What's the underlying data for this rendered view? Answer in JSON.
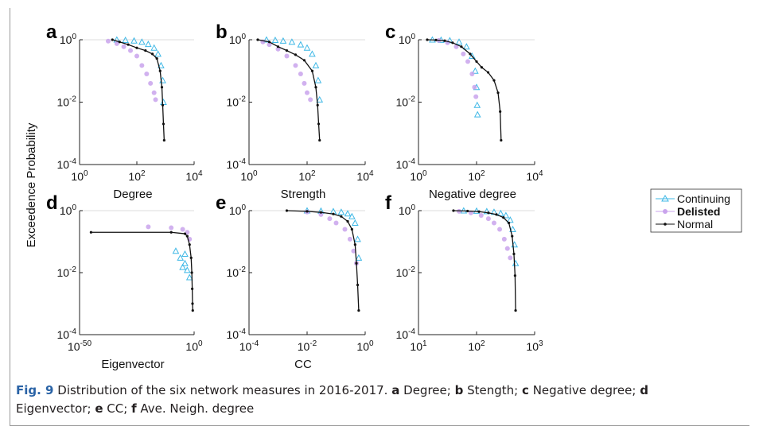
{
  "figure": {
    "ylabel": "Exceedence Probability",
    "legend": {
      "entries": [
        "Continuing",
        "Delisted",
        "Normal"
      ],
      "placement": "right, between rows"
    },
    "colors": {
      "Continuing": "#3fb8e6",
      "Delisted": "#c9a3ec",
      "Normal": "#111111"
    }
  },
  "caption": {
    "fig_label": "Fig. 9",
    "text": "Distribution of the six network measures in 2016-2017.",
    "items": [
      {
        "letter": "a",
        "text": "Degree;"
      },
      {
        "letter": "b",
        "text": "Stength;"
      },
      {
        "letter": "c",
        "text": "Negative degree;"
      },
      {
        "letter": "d",
        "text": "Eigenvector;"
      },
      {
        "letter": "e",
        "text": "CC;"
      },
      {
        "letter": "f",
        "text": "Ave. Neigh. degree"
      }
    ]
  },
  "chart_data": [
    {
      "panel": "a",
      "type": "scatter",
      "xlabel": "Degree",
      "ylabel": "",
      "xscale": "log",
      "yscale": "log",
      "xlim": [
        1,
        10000
      ],
      "ylim": [
        0.0001,
        1
      ],
      "xticks": [
        "10^0",
        "10^2",
        "10^4"
      ],
      "yticks": [
        "10^0",
        "10^-2",
        "10^-4"
      ],
      "series": [
        {
          "name": "Continuing",
          "marker": "triangle",
          "x": [
            20,
            40,
            80,
            150,
            250,
            400,
            550,
            700,
            800,
            850
          ],
          "y": [
            1.0,
            0.97,
            0.93,
            0.85,
            0.72,
            0.55,
            0.35,
            0.15,
            0.05,
            0.01
          ]
        },
        {
          "name": "Delisted",
          "marker": "circle",
          "x": [
            10,
            20,
            35,
            60,
            100,
            150,
            220,
            300,
            400,
            450
          ],
          "y": [
            0.9,
            0.75,
            0.6,
            0.45,
            0.3,
            0.15,
            0.08,
            0.04,
            0.02,
            0.012
          ]
        },
        {
          "name": "Normal",
          "marker": "dot-line",
          "x": [
            14,
            25,
            50,
            100,
            200,
            350,
            500,
            650,
            750,
            800,
            850,
            900
          ],
          "y": [
            1.0,
            0.85,
            0.7,
            0.55,
            0.45,
            0.35,
            0.25,
            0.1,
            0.03,
            0.008,
            0.002,
            0.0006
          ]
        }
      ]
    },
    {
      "panel": "b",
      "type": "scatter",
      "xlabel": "Strength",
      "ylabel": "",
      "xscale": "log",
      "yscale": "log",
      "xlim": [
        1,
        10000
      ],
      "ylim": [
        0.0001,
        1
      ],
      "xticks": [
        "10^0",
        "10^2",
        "10^4"
      ],
      "yticks": [
        "10^0",
        "10^-2",
        "10^-4"
      ],
      "series": [
        {
          "name": "Continuing",
          "marker": "triangle",
          "x": [
            4,
            8,
            15,
            30,
            60,
            100,
            150,
            200,
            240,
            270
          ],
          "y": [
            1.0,
            0.97,
            0.92,
            0.85,
            0.7,
            0.55,
            0.35,
            0.15,
            0.05,
            0.012
          ]
        },
        {
          "name": "Delisted",
          "marker": "circle",
          "x": [
            3,
            5,
            10,
            20,
            40,
            60,
            80,
            100,
            130
          ],
          "y": [
            0.85,
            0.7,
            0.5,
            0.3,
            0.15,
            0.08,
            0.04,
            0.02,
            0.012
          ]
        },
        {
          "name": "Normal",
          "marker": "dot-line",
          "x": [
            2,
            5,
            10,
            20,
            40,
            80,
            150,
            200,
            230,
            250,
            270
          ],
          "y": [
            1.0,
            0.85,
            0.6,
            0.45,
            0.33,
            0.22,
            0.1,
            0.03,
            0.008,
            0.002,
            0.0006
          ]
        }
      ]
    },
    {
      "panel": "c",
      "type": "scatter",
      "xlabel": "Negative degree",
      "ylabel": "",
      "xscale": "log",
      "yscale": "log",
      "xlim": [
        1,
        10000
      ],
      "ylim": [
        0.0001,
        1
      ],
      "xticks": [
        "10^0",
        "10^2",
        "10^4"
      ],
      "yticks": [
        "10^0",
        "10^-2",
        "10^-4"
      ],
      "series": [
        {
          "name": "Continuing",
          "marker": "triangle",
          "x": [
            3,
            6,
            12,
            25,
            45,
            70,
            90,
            100,
            105,
            108
          ],
          "y": [
            1.0,
            0.98,
            0.95,
            0.85,
            0.6,
            0.3,
            0.1,
            0.03,
            0.008,
            0.004
          ]
        },
        {
          "name": "Delisted",
          "marker": "circle",
          "x": [
            5,
            10,
            20,
            35,
            50,
            70,
            85,
            95
          ],
          "y": [
            0.95,
            0.8,
            0.6,
            0.35,
            0.2,
            0.08,
            0.03,
            0.015
          ]
        },
        {
          "name": "Normal",
          "marker": "dot-line",
          "x": [
            2,
            4,
            8,
            15,
            30,
            60,
            100,
            150,
            250,
            400,
            550,
            650,
            700
          ],
          "y": [
            1.0,
            0.98,
            0.93,
            0.8,
            0.6,
            0.35,
            0.2,
            0.13,
            0.09,
            0.05,
            0.02,
            0.005,
            0.0006
          ]
        }
      ]
    },
    {
      "panel": "d",
      "type": "scatter",
      "xlabel": "Eigenvector",
      "ylabel": "",
      "xscale": "log",
      "yscale": "log",
      "xlim": [
        1e-50,
        1
      ],
      "ylim": [
        0.0001,
        1
      ],
      "xticks": [
        "10^-50",
        "10^0"
      ],
      "yticks": [
        "10^0",
        "10^-2",
        "10^-4"
      ],
      "series": [
        {
          "name": "Continuing",
          "marker": "triangle",
          "x": [
            1e-08,
            1e-06,
            0.0001,
            0.001,
            0.01,
            1e-05,
            0.0001
          ],
          "y": [
            0.05,
            0.03,
            0.02,
            0.012,
            0.007,
            0.015,
            0.04
          ]
        },
        {
          "name": "Delisted",
          "marker": "circle",
          "x": [
            1e-20,
            1e-10,
            1e-05,
            0.001,
            0.01
          ],
          "y": [
            0.3,
            0.28,
            0.25,
            0.2,
            0.12
          ]
        },
        {
          "name": "Normal",
          "marker": "dot-line",
          "x": [
            1e-45,
            1e-10,
            0.0001,
            0.001,
            0.01,
            0.05,
            0.1,
            0.15,
            0.2,
            0.25
          ],
          "y": [
            0.2,
            0.2,
            0.18,
            0.15,
            0.08,
            0.03,
            0.01,
            0.003,
            0.001,
            0.0006
          ]
        }
      ]
    },
    {
      "panel": "e",
      "type": "scatter",
      "xlabel": "CC",
      "ylabel": "",
      "xscale": "log",
      "yscale": "log",
      "xlim": [
        0.0001,
        1
      ],
      "ylim": [
        0.0001,
        1
      ],
      "xticks": [
        "10^-4",
        "10^-2",
        "10^0"
      ],
      "yticks": [
        "10^0",
        "10^-2",
        "10^-4"
      ],
      "series": [
        {
          "name": "Continuing",
          "marker": "triangle",
          "x": [
            0.01,
            0.03,
            0.08,
            0.15,
            0.25,
            0.35,
            0.45,
            0.55,
            0.6
          ],
          "y": [
            1.0,
            0.98,
            0.95,
            0.9,
            0.8,
            0.65,
            0.4,
            0.12,
            0.03
          ]
        },
        {
          "name": "Delisted",
          "marker": "circle",
          "x": [
            0.01,
            0.03,
            0.06,
            0.1,
            0.2,
            0.3,
            0.4,
            0.5
          ],
          "y": [
            0.9,
            0.75,
            0.55,
            0.4,
            0.25,
            0.12,
            0.05,
            0.02
          ]
        },
        {
          "name": "Normal",
          "marker": "dot-line",
          "x": [
            0.002,
            0.01,
            0.03,
            0.08,
            0.15,
            0.25,
            0.35,
            0.45,
            0.5,
            0.55,
            0.6
          ],
          "y": [
            1.0,
            0.95,
            0.88,
            0.78,
            0.65,
            0.45,
            0.25,
            0.08,
            0.02,
            0.004,
            0.0006
          ]
        }
      ]
    },
    {
      "panel": "f",
      "type": "scatter",
      "xlabel": "",
      "ylabel": "",
      "xscale": "log",
      "yscale": "log",
      "xlim": [
        10,
        1000
      ],
      "ylim": [
        0.0001,
        1
      ],
      "xticks": [
        "10^1",
        "10^2",
        "10^3"
      ],
      "yticks": [
        "10^0",
        "10^-2",
        "10^-4"
      ],
      "series": [
        {
          "name": "Continuing",
          "marker": "triangle",
          "x": [
            60,
            100,
            150,
            200,
            260,
            320,
            380,
            420,
            450,
            470
          ],
          "y": [
            1.0,
            0.98,
            0.95,
            0.9,
            0.82,
            0.7,
            0.5,
            0.25,
            0.08,
            0.02
          ]
        },
        {
          "name": "Delisted",
          "marker": "circle",
          "x": [
            50,
            80,
            120,
            160,
            200,
            250,
            300,
            340,
            380
          ],
          "y": [
            0.95,
            0.85,
            0.7,
            0.55,
            0.4,
            0.25,
            0.12,
            0.06,
            0.03
          ]
        },
        {
          "name": "Normal",
          "marker": "dot-line",
          "x": [
            40,
            70,
            110,
            160,
            220,
            290,
            360,
            410,
            440,
            460,
            470
          ],
          "y": [
            1.0,
            0.97,
            0.93,
            0.85,
            0.75,
            0.6,
            0.4,
            0.15,
            0.04,
            0.008,
            0.0006
          ]
        }
      ]
    }
  ]
}
